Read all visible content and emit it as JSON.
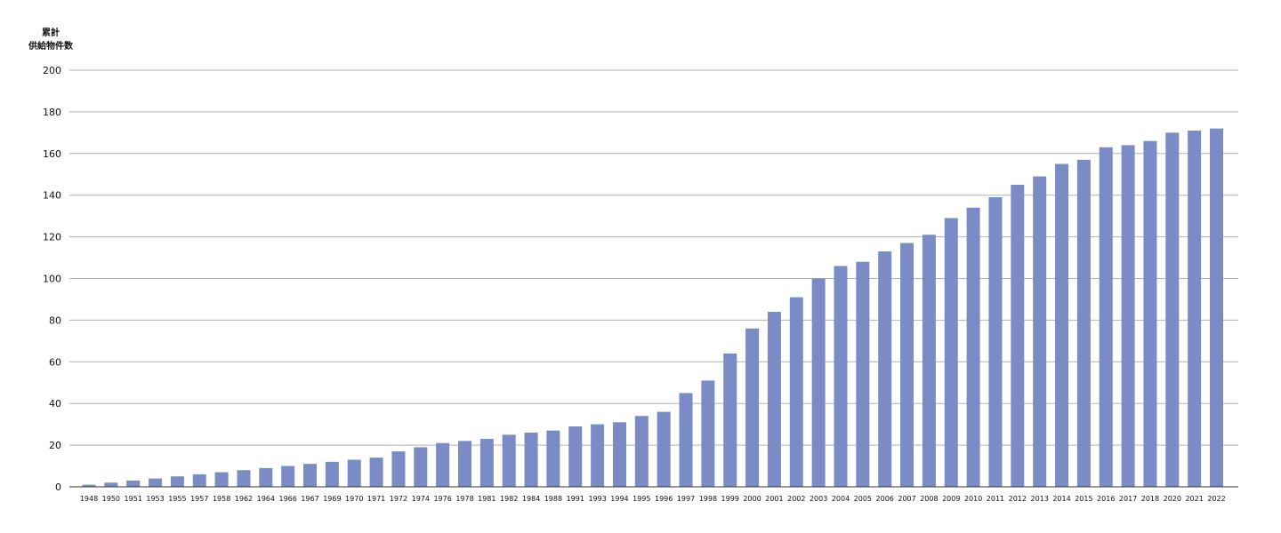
{
  "chart_data": {
    "type": "bar",
    "title": "",
    "xlabel": "",
    "ylabel_lines": [
      "累計",
      "供給物件数"
    ],
    "ylim": [
      0,
      200
    ],
    "yticks": [
      0,
      20,
      40,
      60,
      80,
      100,
      120,
      140,
      160,
      180,
      200
    ],
    "grid": true,
    "bar_color": "#7a8bc5",
    "grid_color": "#b3b3b3",
    "categories": [
      "1948",
      "1950",
      "1951",
      "1953",
      "1955",
      "1957",
      "1958",
      "1962",
      "1964",
      "1966",
      "1967",
      "1969",
      "1970",
      "1971",
      "1972",
      "1974",
      "1976",
      "1978",
      "1981",
      "1982",
      "1984",
      "1988",
      "1991",
      "1993",
      "1994",
      "1995",
      "1996",
      "1997",
      "1998",
      "1999",
      "2000",
      "2001",
      "2002",
      "2003",
      "2004",
      "2005",
      "2006",
      "2007",
      "2008",
      "2009",
      "2010",
      "2011",
      "2012",
      "2013",
      "2014",
      "2015",
      "2016",
      "2017",
      "2018",
      "2020",
      "2021",
      "2022"
    ],
    "values": [
      1,
      2,
      3,
      4,
      5,
      6,
      7,
      8,
      9,
      10,
      11,
      12,
      13,
      14,
      17,
      19,
      21,
      22,
      23,
      25,
      26,
      27,
      29,
      30,
      31,
      34,
      36,
      45,
      51,
      64,
      76,
      84,
      91,
      100,
      106,
      108,
      113,
      117,
      121,
      129,
      134,
      139,
      145,
      149,
      155,
      157,
      163,
      164,
      166,
      170,
      171,
      172
    ]
  }
}
